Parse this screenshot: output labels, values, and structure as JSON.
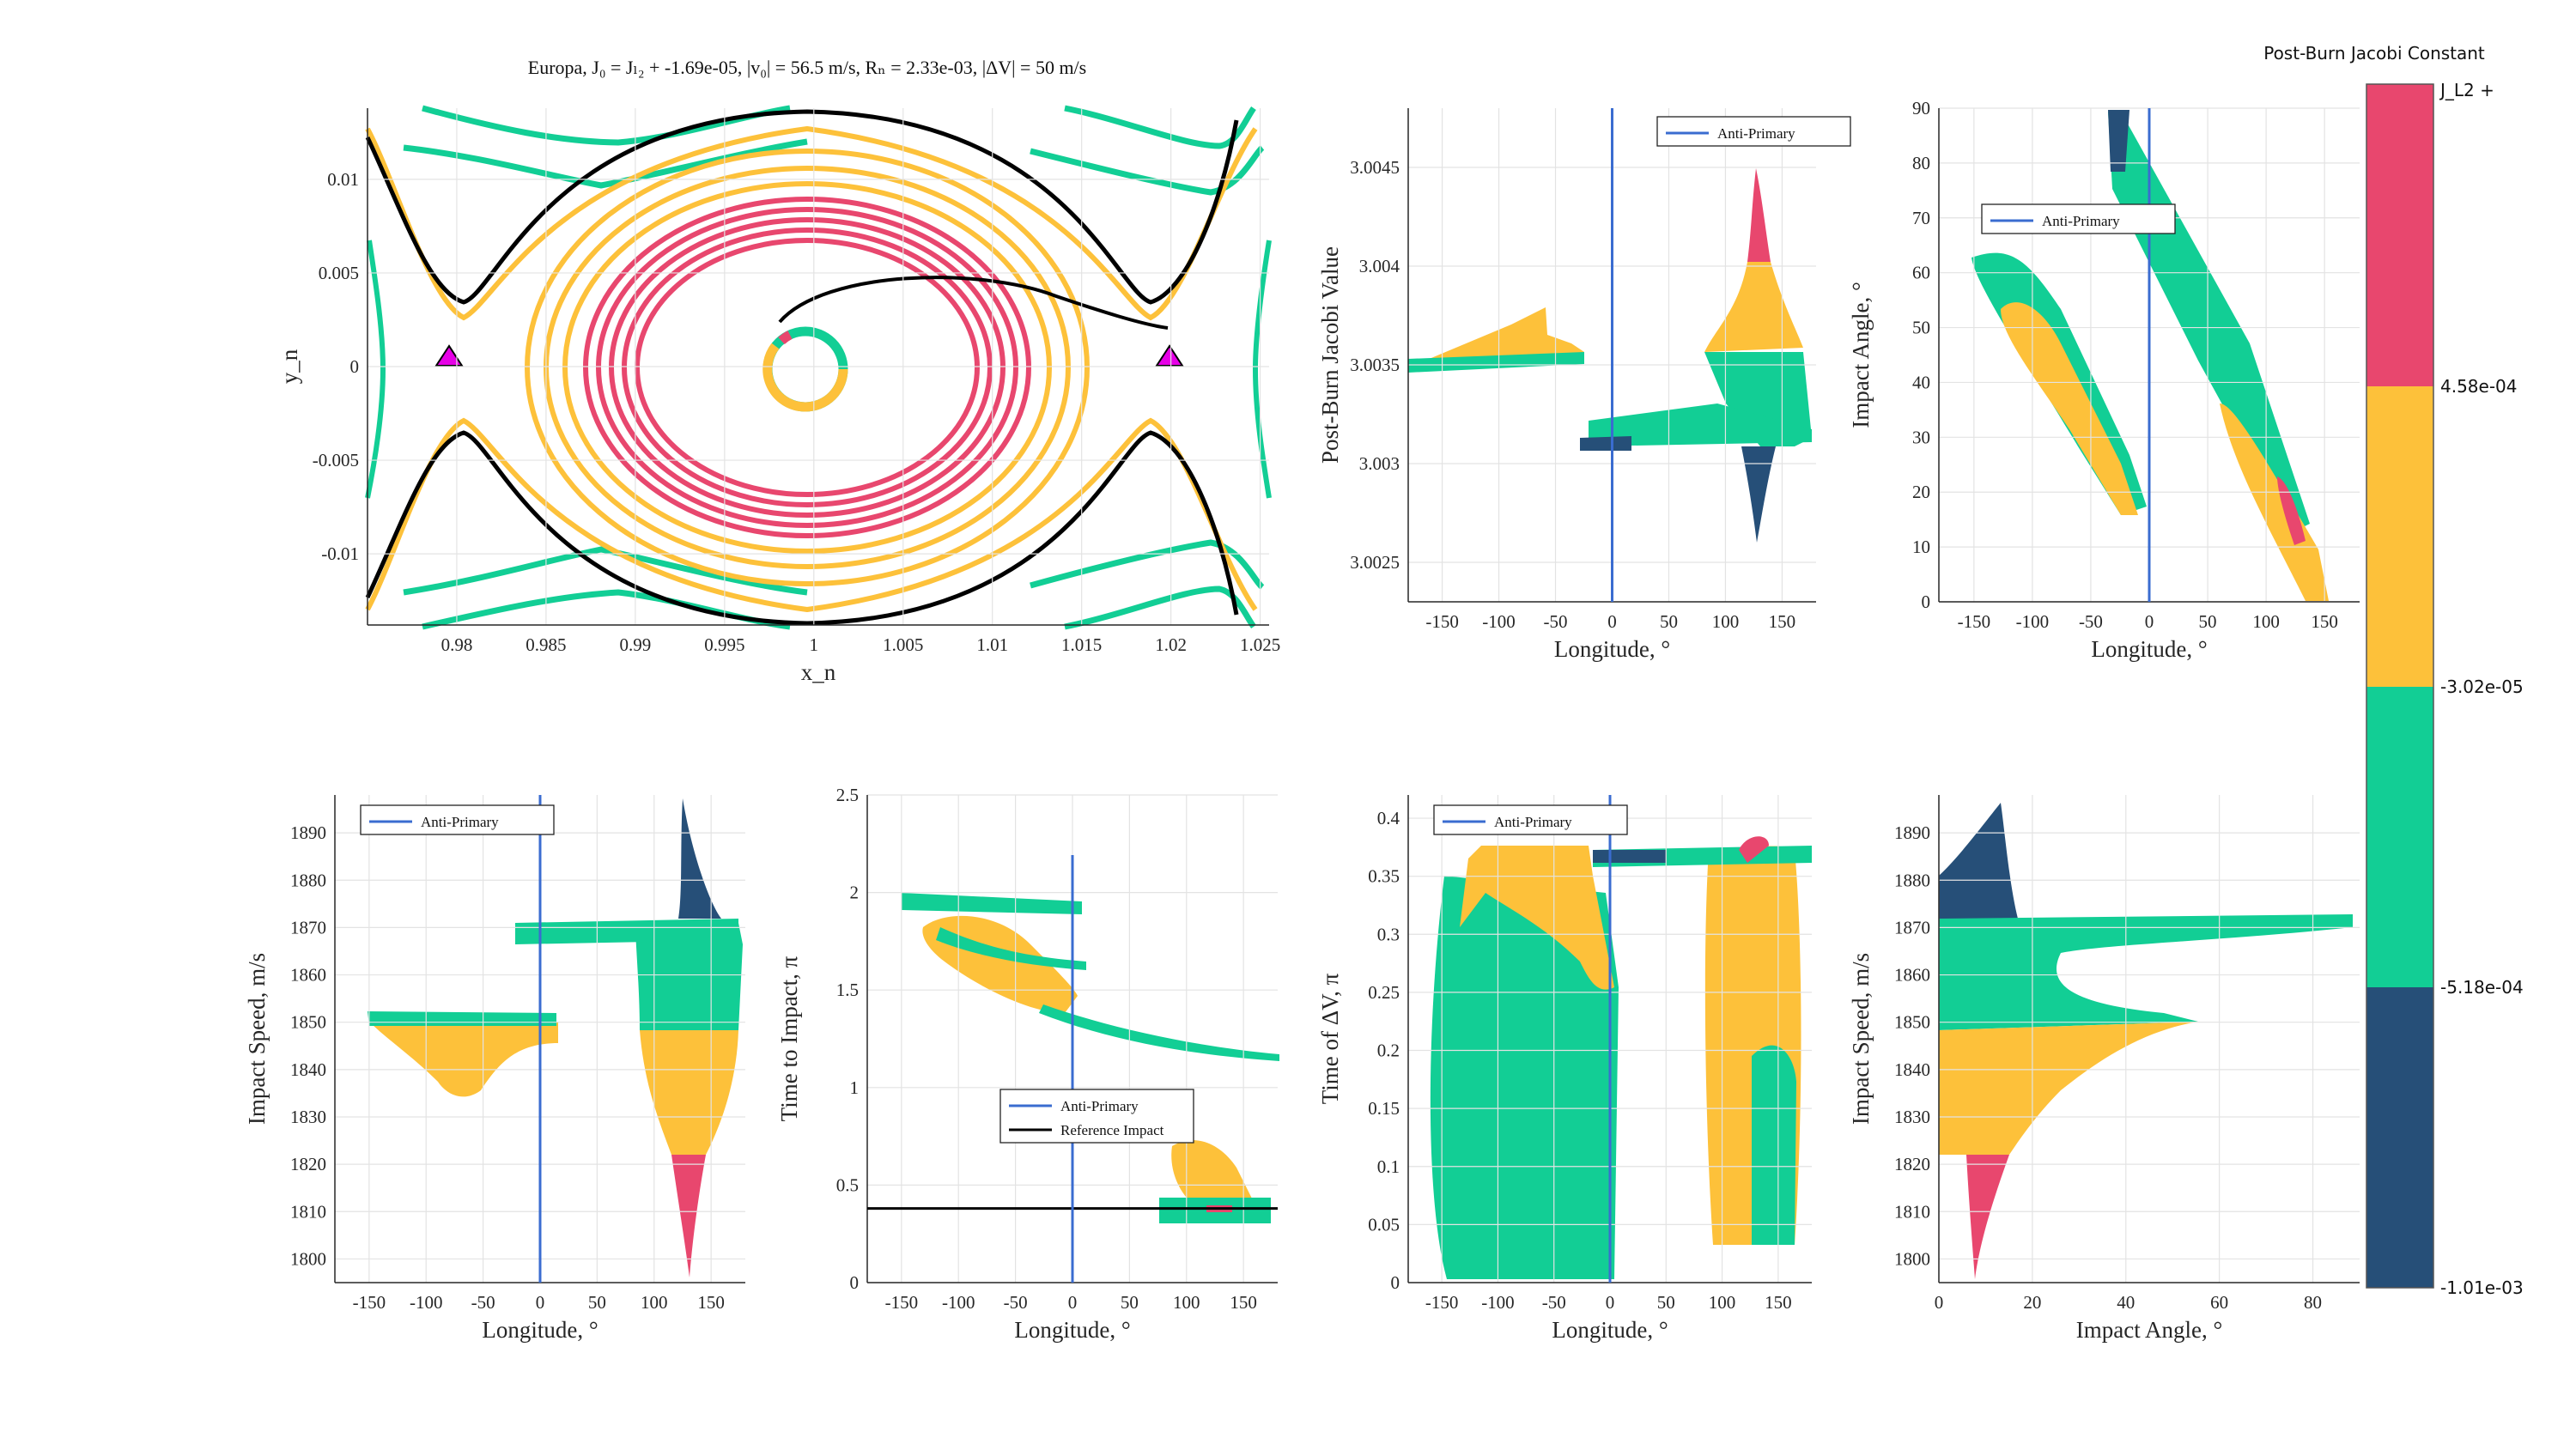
{
  "colors": {
    "pink": "#E8476E",
    "yellow": "#FDC13A",
    "green": "#12CE95",
    "navy": "#264F78",
    "blue": "#3A6CD0",
    "magenta": "#E600E6",
    "black": "#000000",
    "grid": "#e3e3e3"
  },
  "title": "Europa,      J₀ = Jₗ₂ + -1.69e-05,      |v₀| = 56.5 m/s,      Rₙ = 2.33e-03,      |ΔV| = 50 m/s",
  "colorbar": {
    "title": "Post-Burn Jacobi Constant",
    "tick_labels": [
      "J_L2 +",
      "4.58e-04",
      "-3.02e-05",
      "-5.18e-04",
      "-1.01e-03"
    ],
    "bands": [
      "#E8476E",
      "#FDC13A",
      "#12CE95",
      "#264F78"
    ]
  },
  "chart_data": [
    {
      "id": "p1",
      "type": "line",
      "title": "",
      "xlabel": "x_n",
      "ylabel": "y_n",
      "xlim": [
        0.975,
        1.0255
      ],
      "ylim": [
        -0.0138,
        0.0138
      ],
      "xticks": [
        0.98,
        0.985,
        0.99,
        0.995,
        1,
        1.005,
        1.01,
        1.015,
        1.02,
        1.025
      ],
      "xticklabels": [
        "0.98",
        "0.985",
        "0.99",
        "0.995",
        "1",
        "1.005",
        "1.01",
        "1.015",
        "1.02",
        "1.025"
      ],
      "yticks": [
        -0.01,
        -0.005,
        0,
        0.005,
        0.01
      ],
      "yticklabels": [
        "-0.01",
        "-0.005",
        "0",
        "0.005",
        "0.01"
      ],
      "markers": {
        "L1": [
          0.9799,
          0
        ],
        "L2": [
          1.0204,
          0
        ]
      },
      "moon_center": [
        0.9995,
        -0.0001
      ],
      "moon_radius": 0.0019
    },
    {
      "id": "p2",
      "type": "scatter",
      "xlabel": "Longitude, °",
      "ylabel": "Post-Burn Jacobi Value",
      "xlim": [
        -180,
        180
      ],
      "ylim": [
        3.0023,
        3.0048
      ],
      "xticks": [
        -150,
        -100,
        -50,
        0,
        50,
        100,
        150
      ],
      "xticklabels": [
        "-150",
        "-100",
        "-50",
        "0",
        "50",
        "100",
        "150"
      ],
      "yticks": [
        3.0025,
        3.003,
        3.0035,
        3.004,
        3.0045
      ],
      "yticklabels": [
        "3.0025",
        "3.003",
        "3.0035",
        "3.004",
        "3.0045"
      ],
      "legend": [
        "Anti-Primary"
      ],
      "vline": 0
    },
    {
      "id": "p3",
      "type": "scatter",
      "xlabel": "Longitude, °",
      "ylabel": "Impact Angle, °",
      "xlim": [
        -180,
        180
      ],
      "ylim": [
        0,
        90
      ],
      "xticks": [
        -150,
        -100,
        -50,
        0,
        50,
        100,
        150
      ],
      "xticklabels": [
        "-150",
        "-100",
        "-50",
        "0",
        "50",
        "100",
        "150"
      ],
      "yticks": [
        0,
        10,
        20,
        30,
        40,
        50,
        60,
        70,
        80,
        90
      ],
      "yticklabels": [
        "0",
        "10",
        "20",
        "30",
        "40",
        "50",
        "60",
        "70",
        "80",
        "90"
      ],
      "legend": [
        "Anti-Primary"
      ],
      "vline": 0
    },
    {
      "id": "p4",
      "type": "scatter",
      "xlabel": "Longitude, °",
      "ylabel": "Impact Speed, m/s",
      "xlim": [
        -180,
        180
      ],
      "ylim": [
        1795,
        1898
      ],
      "xticks": [
        -150,
        -100,
        -50,
        0,
        50,
        100,
        150
      ],
      "xticklabels": [
        "-150",
        "-100",
        "-50",
        "0",
        "50",
        "100",
        "150"
      ],
      "yticks": [
        1800,
        1810,
        1820,
        1830,
        1840,
        1850,
        1860,
        1870,
        1880,
        1890
      ],
      "yticklabels": [
        "1800",
        "1810",
        "1820",
        "1830",
        "1840",
        "1850",
        "1860",
        "1870",
        "1880",
        "1890"
      ],
      "legend": [
        "Anti-Primary"
      ],
      "vline": 0
    },
    {
      "id": "p5",
      "type": "scatter",
      "xlabel": "Longitude, °",
      "ylabel": "Time to Impact, π",
      "xlim": [
        -180,
        180
      ],
      "ylim": [
        0,
        2.5
      ],
      "xticks": [
        -150,
        -100,
        -50,
        0,
        50,
        100,
        150
      ],
      "xticklabels": [
        "-150",
        "-100",
        "-50",
        "0",
        "50",
        "100",
        "150"
      ],
      "yticks": [
        0,
        0.5,
        1,
        1.5,
        2,
        2.5
      ],
      "yticklabels": [
        "0",
        "0.5",
        "1",
        "1.5",
        "2",
        "2.5"
      ],
      "legend": [
        "Anti-Primary",
        "Reference Impact"
      ],
      "vline": 0,
      "hline": 0.38
    },
    {
      "id": "p6",
      "type": "scatter",
      "xlabel": "Longitude, °",
      "ylabel": "Time of ΔV, π",
      "xlim": [
        -180,
        180
      ],
      "ylim": [
        0,
        0.42
      ],
      "xticks": [
        -150,
        -100,
        -50,
        0,
        50,
        100,
        150
      ],
      "xticklabels": [
        "-150",
        "-100",
        "-50",
        "0",
        "50",
        "100",
        "150"
      ],
      "yticks": [
        0,
        0.05,
        0.1,
        0.15,
        0.2,
        0.25,
        0.3,
        0.35,
        0.4
      ],
      "yticklabels": [
        "0",
        "0.05",
        "0.1",
        "0.15",
        "0.2",
        "0.25",
        "0.3",
        "0.35",
        "0.4"
      ],
      "legend": [
        "Anti-Primary"
      ],
      "vline": 0
    },
    {
      "id": "p7",
      "type": "scatter",
      "xlabel": "Impact Angle, °",
      "ylabel": "Impact Speed, m/s",
      "xlim": [
        0,
        90
      ],
      "ylim": [
        1795,
        1898
      ],
      "xticks": [
        0,
        20,
        40,
        60,
        80
      ],
      "xticklabels": [
        "0",
        "20",
        "40",
        "60",
        "80"
      ],
      "yticks": [
        1800,
        1810,
        1820,
        1830,
        1840,
        1850,
        1860,
        1870,
        1880,
        1890
      ],
      "yticklabels": [
        "1800",
        "1810",
        "1820",
        "1830",
        "1840",
        "1850",
        "1860",
        "1870",
        "1880",
        "1890"
      ]
    }
  ]
}
